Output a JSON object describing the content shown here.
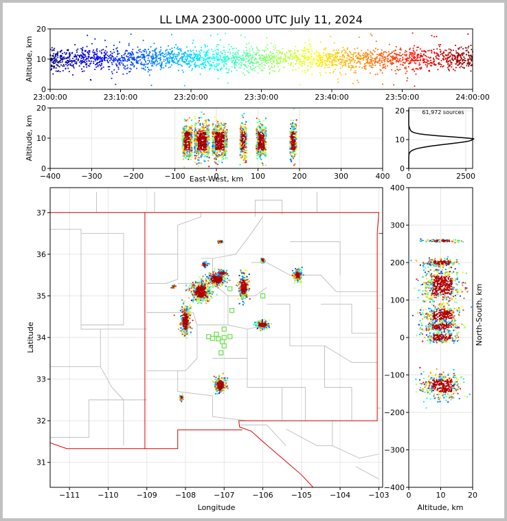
{
  "title": "LL LMA 2300-0000 UTC July 11, 2024",
  "colors": {
    "state_border": "#d40000",
    "county_border": "#b4b4b4",
    "grid": "#e6e6e6",
    "frame_border": "#c0c0c0"
  },
  "chart_data": [
    {
      "id": "time-altitude",
      "type": "scatter",
      "ylabel": "Altitude, km",
      "ylim": [
        0,
        20
      ],
      "yticks": [
        "0",
        "10",
        "20"
      ],
      "xlim_minutes": [
        0,
        60
      ],
      "xticks": [
        "23:00:00",
        "23:10:00",
        "23:20:00",
        "23:30:00",
        "23:40:00",
        "23:50:00",
        "24:00:00"
      ],
      "color_scale": "jet, by time",
      "altitude_band_km": [
        5,
        14
      ],
      "altitude_peak_km": 10
    },
    {
      "id": "ew-altitude",
      "type": "scatter",
      "xlabel": "East-West, km",
      "ylabel": "Altitude, km",
      "xlim": [
        -400,
        400
      ],
      "ylim": [
        0,
        20
      ],
      "xticks": [
        "−400",
        "−300",
        "−200",
        "−100",
        "0",
        "100",
        "200",
        "300",
        "400"
      ],
      "yticks": [
        "0",
        "10",
        "20"
      ],
      "clusters_ew_km": [
        {
          "center": -70,
          "width": 12
        },
        {
          "center": -35,
          "width": 18
        },
        {
          "center": 8,
          "width": 18
        },
        {
          "center": 65,
          "width": 8
        },
        {
          "center": 108,
          "width": 12
        },
        {
          "center": 185,
          "width": 8
        }
      ]
    },
    {
      "id": "altitude-histogram",
      "type": "line",
      "annotation": "61,972 sources",
      "xlim": [
        0,
        2800
      ],
      "ylim": [
        0,
        21
      ],
      "xticks": [
        "0",
        "2500"
      ],
      "yticks": [
        "0",
        "10",
        "20"
      ],
      "peak": {
        "altitude_km": 10,
        "count": 2780
      }
    },
    {
      "id": "plan-view",
      "type": "scatter",
      "xlabel": "Longitude",
      "ylabel": "Latitude",
      "xlim": [
        -111.5,
        -102.9
      ],
      "ylim": [
        30.4,
        37.6
      ],
      "xticks": [
        "−111",
        "−110",
        "−109",
        "−108",
        "−107",
        "−106",
        "−105",
        "−104",
        "−103"
      ],
      "yticks": [
        "31",
        "32",
        "33",
        "34",
        "35",
        "36",
        "37"
      ],
      "station_color": "#66e04a",
      "stations": [
        {
          "lon": -106.85,
          "lat": 35.17
        },
        {
          "lon": -106.5,
          "lat": 34.98
        },
        {
          "lon": -106.0,
          "lat": 35.0
        },
        {
          "lon": -106.8,
          "lat": 34.65
        },
        {
          "lon": -107.0,
          "lat": 34.2
        },
        {
          "lon": -107.2,
          "lat": 34.08
        },
        {
          "lon": -107.3,
          "lat": 33.98
        },
        {
          "lon": -107.15,
          "lat": 33.97
        },
        {
          "lon": -107.0,
          "lat": 34.0
        },
        {
          "lon": -107.4,
          "lat": 34.02
        },
        {
          "lon": -106.85,
          "lat": 34.02
        },
        {
          "lon": -107.05,
          "lat": 33.9
        },
        {
          "lon": -107.0,
          "lat": 33.8
        },
        {
          "lon": -107.08,
          "lat": 33.63
        }
      ],
      "clusters": [
        {
          "lon": -107.6,
          "lat": 35.1,
          "rlon": 0.25,
          "rlat": 0.25
        },
        {
          "lon": -107.2,
          "lat": 35.4,
          "rlon": 0.25,
          "rlat": 0.15
        },
        {
          "lon": -107.05,
          "lat": 35.55,
          "rlon": 0.12,
          "rlat": 0.06
        },
        {
          "lon": -106.5,
          "lat": 35.2,
          "rlon": 0.12,
          "rlat": 0.3
        },
        {
          "lon": -105.1,
          "lat": 35.5,
          "rlon": 0.12,
          "rlat": 0.15
        },
        {
          "lon": -106.0,
          "lat": 34.3,
          "rlon": 0.18,
          "rlat": 0.1
        },
        {
          "lon": -108.0,
          "lat": 34.4,
          "rlon": 0.12,
          "rlat": 0.35
        },
        {
          "lon": -107.1,
          "lat": 32.85,
          "rlon": 0.15,
          "rlat": 0.2
        },
        {
          "lon": -107.1,
          "lat": 36.3,
          "rlon": 0.06,
          "rlat": 0.03
        },
        {
          "lon": -106.0,
          "lat": 35.85,
          "rlon": 0.05,
          "rlat": 0.05
        },
        {
          "lon": -107.5,
          "lat": 35.75,
          "rlon": 0.06,
          "rlat": 0.05
        },
        {
          "lon": -108.1,
          "lat": 32.55,
          "rlon": 0.04,
          "rlat": 0.06
        },
        {
          "lon": -108.3,
          "lat": 35.22,
          "rlon": 0.04,
          "rlat": 0.03
        }
      ]
    },
    {
      "id": "altitude-ns",
      "type": "scatter",
      "xlabel": "Altitude, km",
      "ylabel": "North-South, km",
      "xlim": [
        0,
        20
      ],
      "ylim": [
        -400,
        400
      ],
      "xticks": [
        "0",
        "10",
        "20"
      ],
      "yticks": [
        "400",
        "300",
        "200",
        "100",
        "0",
        "−100",
        "−200",
        "−300",
        "−400"
      ],
      "clusters_ns_km": [
        {
          "center": 258,
          "width": 4
        },
        {
          "center": 200,
          "width": 10
        },
        {
          "center": 140,
          "width": 50
        },
        {
          "center": 60,
          "width": 25
        },
        {
          "center": 30,
          "width": 15
        },
        {
          "center": 0,
          "width": 15
        },
        {
          "center": -130,
          "width": 35
        }
      ]
    }
  ]
}
